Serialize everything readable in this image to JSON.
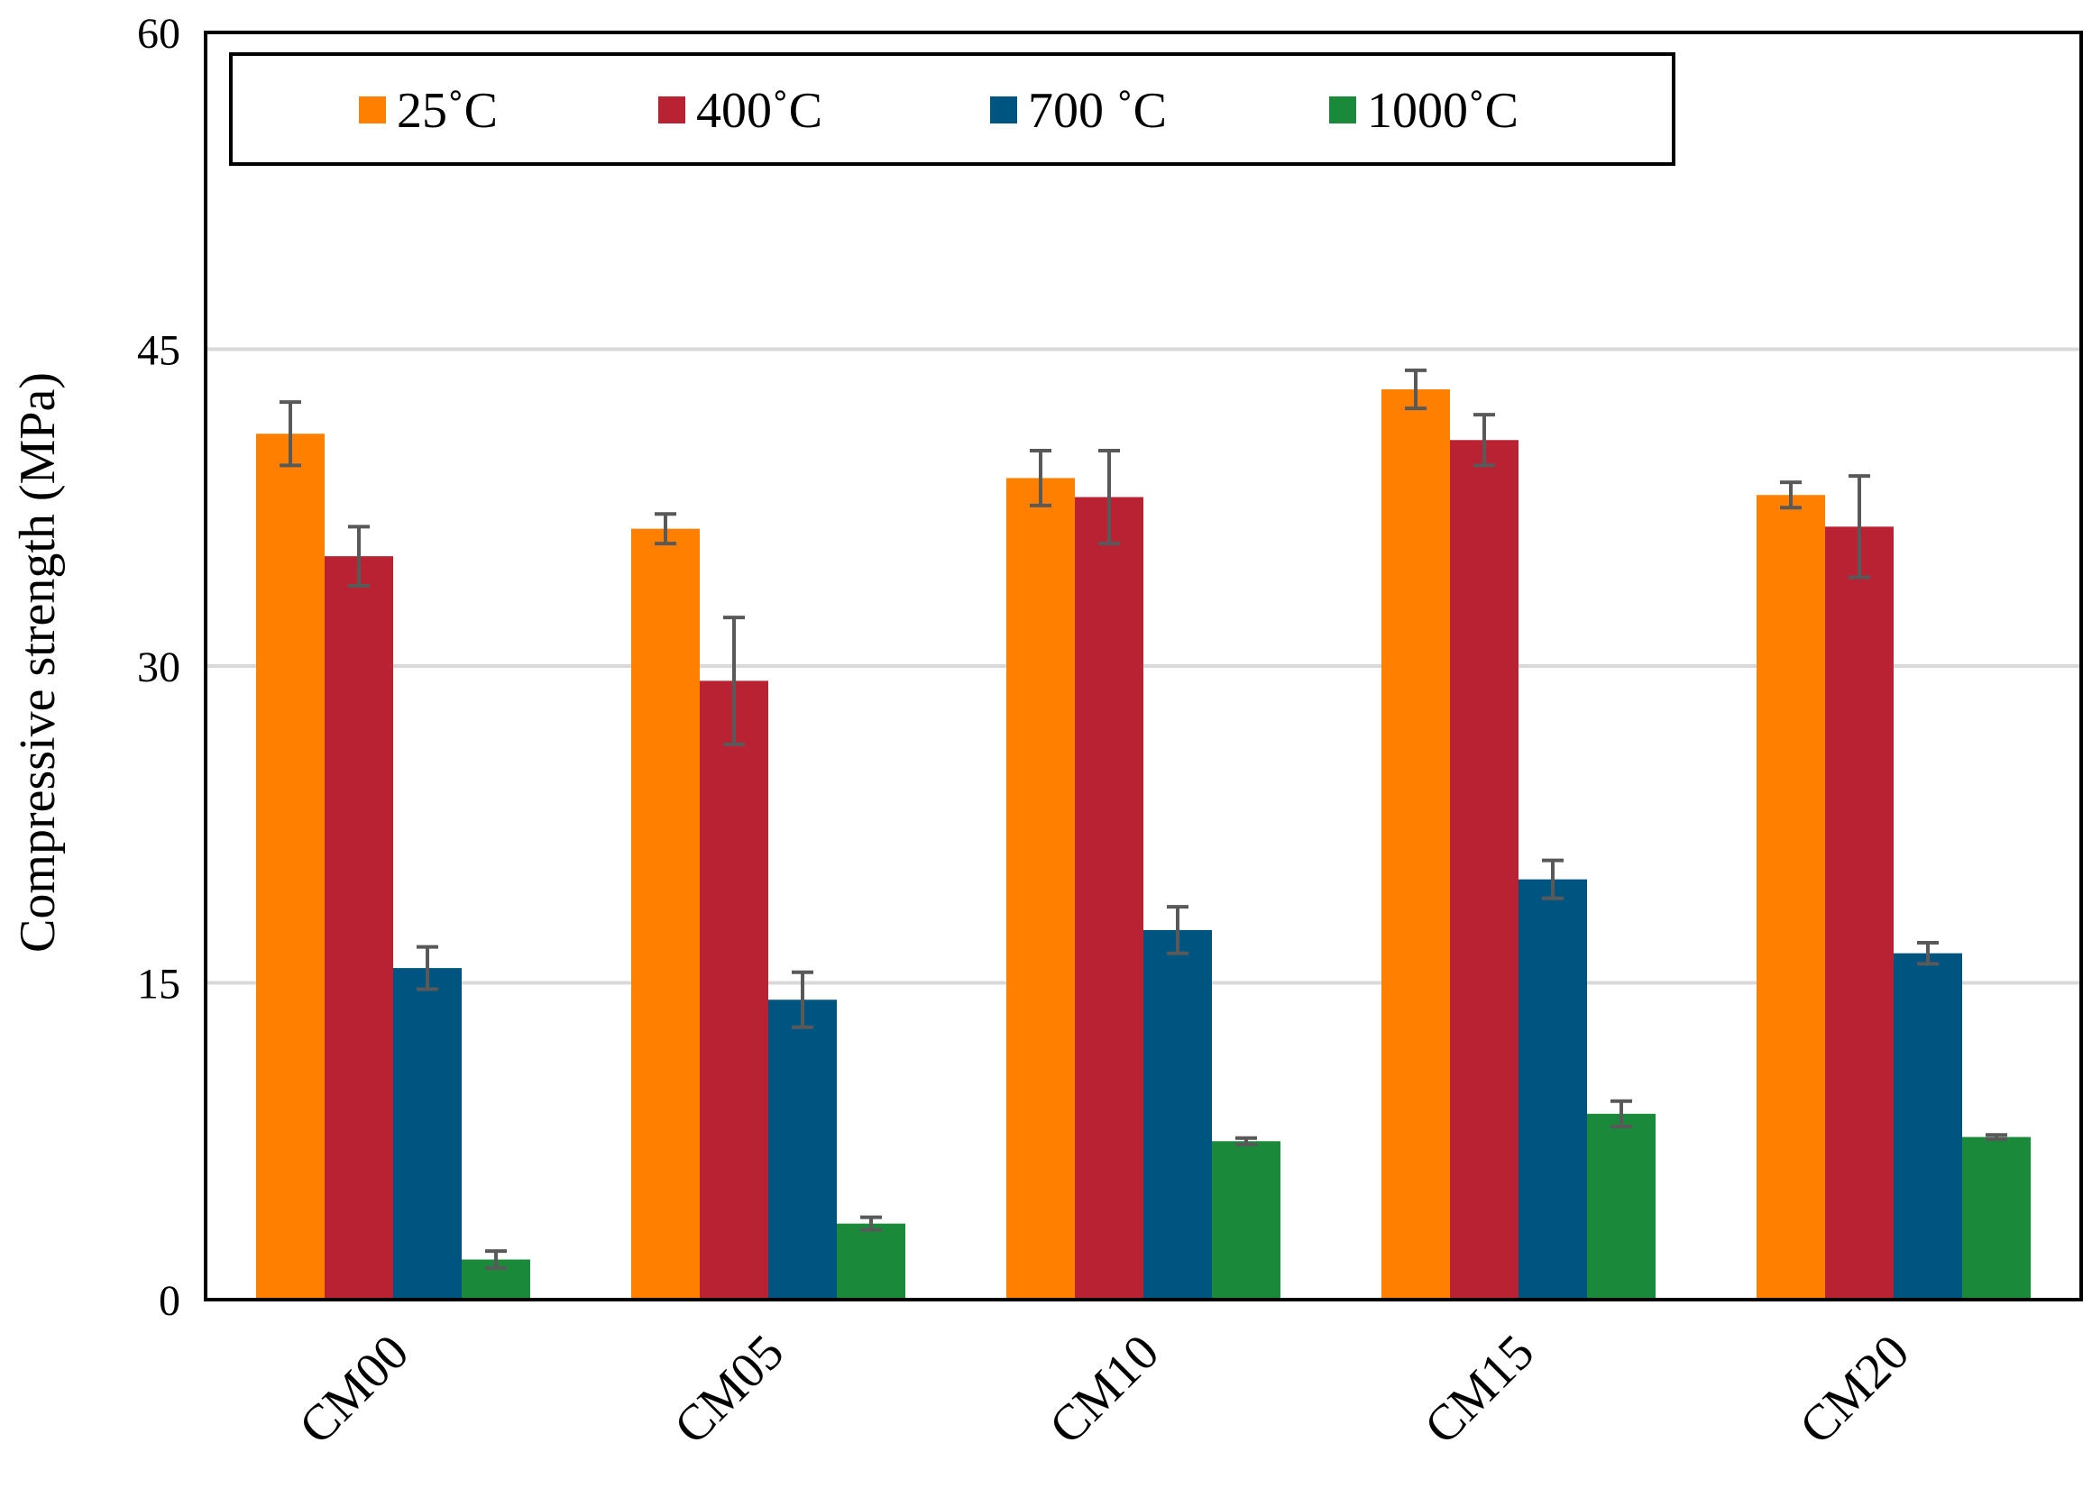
{
  "chart_data": {
    "type": "bar",
    "title": "",
    "xlabel": "",
    "ylabel": "Compressive strength (MPa)",
    "ylim": [
      0,
      60
    ],
    "yticks": [
      0,
      15,
      30,
      45,
      60
    ],
    "grid": "horizontal",
    "legend_position": "top",
    "categories": [
      "CM00",
      "CM05",
      "CM10",
      "CM15",
      "CM20"
    ],
    "series": [
      {
        "name": "25˚C",
        "color": "#ff8000",
        "values": [
          41.0,
          36.5,
          38.9,
          43.1,
          38.1
        ],
        "errors": [
          1.5,
          0.7,
          1.3,
          0.9,
          0.6
        ]
      },
      {
        "name": "400˚C",
        "color": "#b82233",
        "values": [
          35.2,
          29.3,
          38.0,
          40.7,
          36.6
        ],
        "errors": [
          1.4,
          3.0,
          2.2,
          1.2,
          2.4
        ]
      },
      {
        "name": "700 ˚C",
        "color": "#005580",
        "values": [
          15.7,
          14.2,
          17.5,
          19.9,
          16.4
        ],
        "errors": [
          1.0,
          1.3,
          1.1,
          0.9,
          0.5
        ]
      },
      {
        "name": "1000˚C",
        "color": "#1a8a3a",
        "values": [
          1.9,
          3.6,
          7.5,
          8.8,
          7.7
        ],
        "errors": [
          0.4,
          0.3,
          0.15,
          0.6,
          0.1
        ]
      }
    ]
  }
}
